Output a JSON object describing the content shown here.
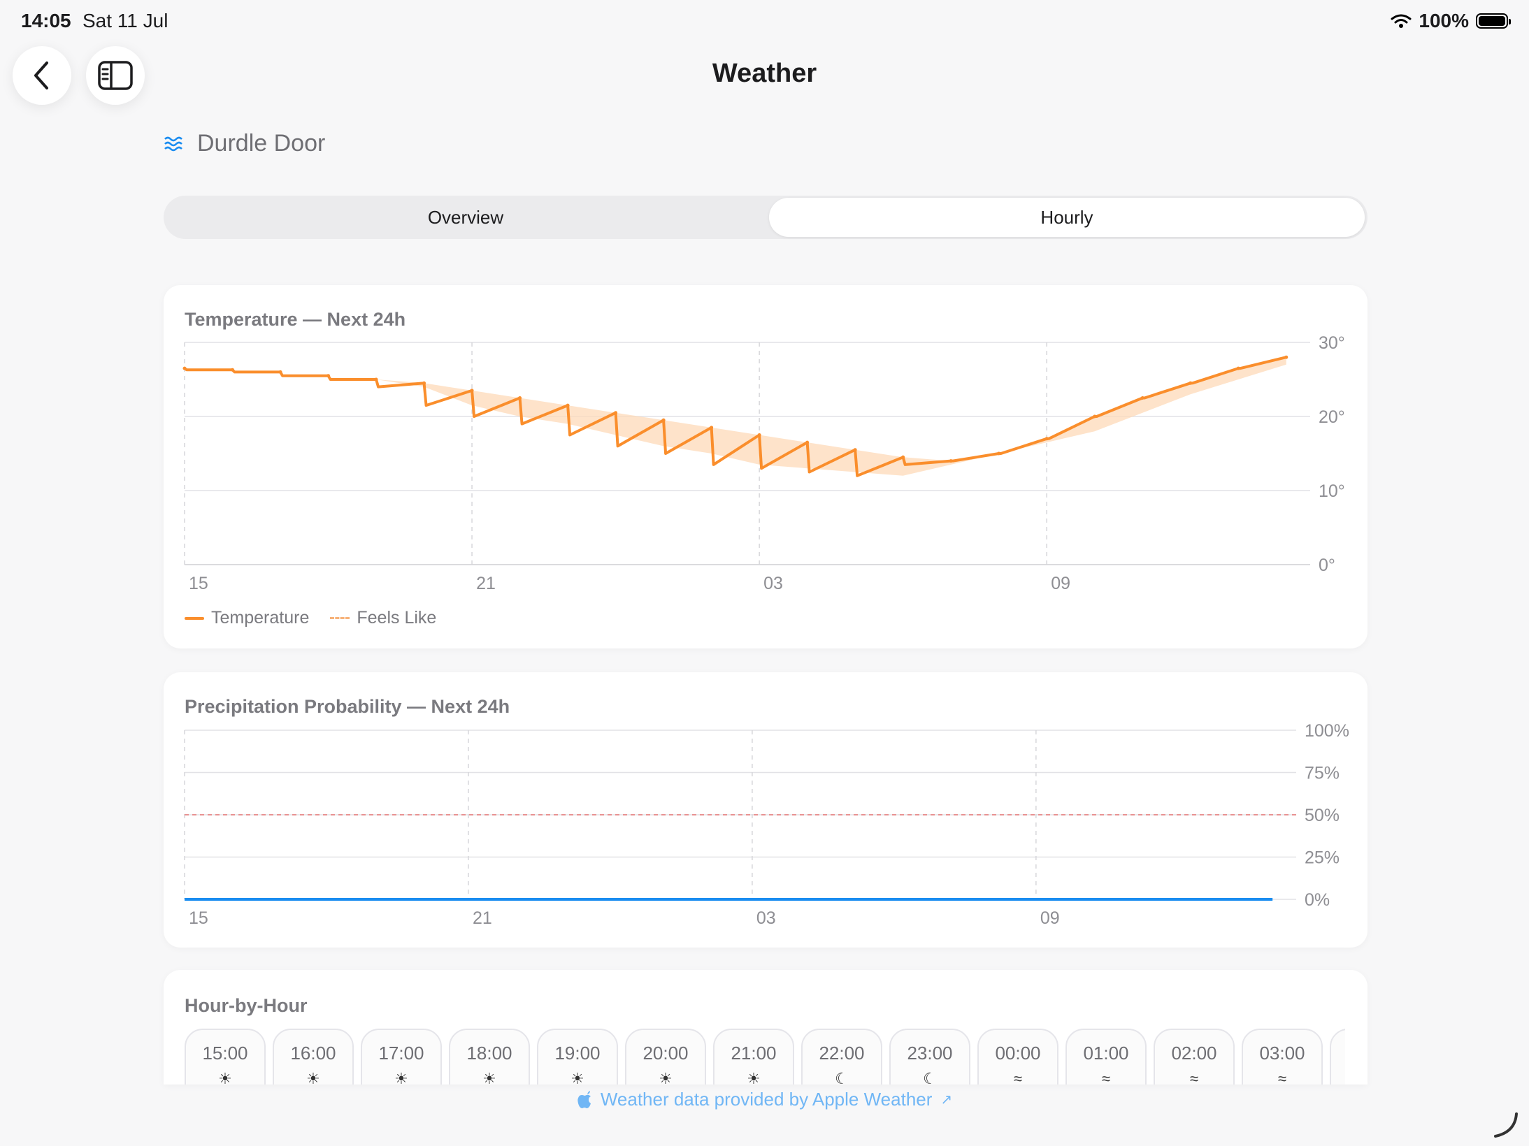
{
  "status_bar": {
    "time": "14:05",
    "date": "Sat 11 Jul",
    "battery": "100%"
  },
  "nav": {
    "title": "Weather"
  },
  "location": {
    "name": "Durdle Door",
    "icon": "waves-icon"
  },
  "tabs": [
    {
      "label": "Overview",
      "selected": false
    },
    {
      "label": "Hourly",
      "selected": true
    }
  ],
  "temperature_card": {
    "title": "Temperature — Next 24h",
    "legend": {
      "temperature": "Temperature",
      "feels_like": "Feels Like"
    }
  },
  "precip_card": {
    "title": "Precipitation Probability — Next 24h"
  },
  "hourly_card": {
    "title": "Hour-by-Hour",
    "hours": [
      {
        "time": "15:00",
        "icon": "sun-icon"
      },
      {
        "time": "16:00",
        "icon": "sun-icon"
      },
      {
        "time": "17:00",
        "icon": "sun-icon"
      },
      {
        "time": "18:00",
        "icon": "sun-icon"
      },
      {
        "time": "19:00",
        "icon": "sun-icon"
      },
      {
        "time": "20:00",
        "icon": "sun-icon"
      },
      {
        "time": "21:00",
        "icon": "sun-icon"
      },
      {
        "time": "22:00",
        "icon": "moon-stars-icon"
      },
      {
        "time": "23:00",
        "icon": "moon-stars-icon"
      },
      {
        "time": "00:00",
        "icon": "wind-icon"
      },
      {
        "time": "01:00",
        "icon": "wind-icon"
      },
      {
        "time": "02:00",
        "icon": "wind-icon"
      },
      {
        "time": "03:00",
        "icon": "wind-icon"
      }
    ]
  },
  "attribution": {
    "text": "Weather data provided by Apple Weather",
    "arrow": "↗"
  },
  "colors": {
    "temperature": "#fa8e2c",
    "feels_like_band": "#fdd9b8",
    "precipitation": "#1a8cf0",
    "threshold": "#e57373"
  },
  "chart_data": [
    {
      "type": "line",
      "title": "Temperature — Next 24h",
      "x_ticks": [
        "15",
        "21",
        "03",
        "09"
      ],
      "y_ticks": [
        "0°",
        "10°",
        "20°",
        "30°"
      ],
      "ylim": [
        0,
        30
      ],
      "grid": true,
      "legend": "bottom-left",
      "x": [
        15,
        16,
        17,
        18,
        19,
        20,
        21,
        22,
        23,
        0,
        1,
        2,
        3,
        4,
        5,
        6,
        7,
        8,
        9,
        10,
        11,
        12,
        13,
        14
      ],
      "series": [
        {
          "name": "Temperature",
          "values": [
            26.5,
            26.3,
            26.0,
            25.5,
            25.0,
            24.5,
            23.5,
            22.5,
            21.5,
            20.5,
            19.5,
            18.5,
            17.5,
            16.5,
            15.5,
            14.5,
            14.0,
            15.0,
            17.0,
            20.0,
            22.5,
            24.5,
            26.5,
            28.0
          ]
        },
        {
          "name": "Feels Like",
          "values": [
            26.5,
            26.3,
            26.0,
            25.5,
            25.0,
            24.0,
            21.5,
            20.0,
            19.0,
            17.5,
            16.0,
            15.0,
            13.5,
            13.0,
            12.5,
            12.0,
            13.5,
            15.0,
            16.5,
            18.0,
            20.5,
            23.0,
            25.0,
            27.0
          ]
        }
      ]
    },
    {
      "type": "line",
      "title": "Precipitation Probability — Next 24h",
      "x_ticks": [
        "15",
        "21",
        "03",
        "09"
      ],
      "y_ticks": [
        "0%",
        "25%",
        "50%",
        "75%",
        "100%"
      ],
      "ylim": [
        0,
        100
      ],
      "grid": true,
      "threshold": 50,
      "x": [
        15,
        16,
        17,
        18,
        19,
        20,
        21,
        22,
        23,
        0,
        1,
        2,
        3,
        4,
        5,
        6,
        7,
        8,
        9,
        10,
        11,
        12,
        13,
        14
      ],
      "series": [
        {
          "name": "Precipitation",
          "values": [
            0,
            0,
            0,
            0,
            0,
            0,
            0,
            0,
            0,
            0,
            0,
            0,
            0,
            0,
            0,
            0,
            0,
            0,
            0,
            0,
            0,
            0,
            0,
            0
          ]
        }
      ]
    }
  ]
}
